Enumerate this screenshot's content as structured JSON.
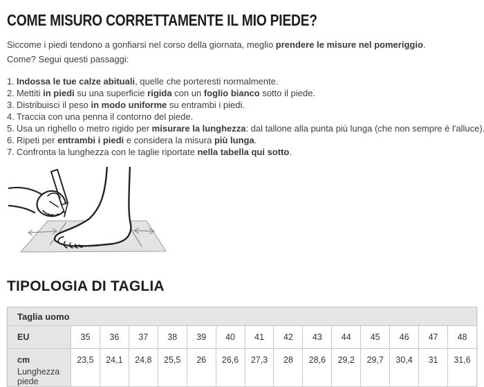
{
  "page": {
    "title": "COME MISURO CORRETTAMENTE IL MIO PIEDE?",
    "intro_segments": [
      {
        "t": "Siccome i piedi tendono a gonfiarsi nel corso della giornata, meglio ",
        "b": false
      },
      {
        "t": "prendere le misure nel pomeriggio",
        "b": true
      },
      {
        "t": ". Come? Segui questi passaggi:",
        "b": false
      }
    ],
    "steps": [
      {
        "num": "1.",
        "segments": [
          {
            "t": "Indossa le tue calze abituali",
            "b": true
          },
          {
            "t": ", quelle che porteresti normalmente.",
            "b": false
          }
        ]
      },
      {
        "num": "2.",
        "segments": [
          {
            "t": "Mettiti ",
            "b": false
          },
          {
            "t": "in piedi",
            "b": true
          },
          {
            "t": " su una superficie ",
            "b": false
          },
          {
            "t": "rigida",
            "b": true
          },
          {
            "t": " con un ",
            "b": false
          },
          {
            "t": "foglio bianco",
            "b": true
          },
          {
            "t": " sotto il piede.",
            "b": false
          }
        ]
      },
      {
        "num": "3.",
        "segments": [
          {
            "t": "Distribuisci il peso ",
            "b": false
          },
          {
            "t": "in modo uniforme",
            "b": true
          },
          {
            "t": " su entrambi i piedi.",
            "b": false
          }
        ]
      },
      {
        "num": "4.",
        "segments": [
          {
            "t": "Traccia con una penna il contorno del piede.",
            "b": false
          }
        ]
      },
      {
        "num": "5.",
        "segments": [
          {
            "t": "Usa un righello o metro rigido per ",
            "b": false
          },
          {
            "t": "misurare la lunghezza",
            "b": true
          },
          {
            "t": ": dal tallone alla punta più lunga (che non sempre è l'alluce).",
            "b": false
          }
        ]
      },
      {
        "num": "6.",
        "segments": [
          {
            "t": "Ripeti per ",
            "b": false
          },
          {
            "t": "entrambi i piedi",
            "b": true
          },
          {
            "t": " e considera la misura ",
            "b": false
          },
          {
            "t": "più lunga",
            "b": true
          },
          {
            "t": ".",
            "b": false
          }
        ]
      },
      {
        "num": "7.",
        "segments": [
          {
            "t": "Confronta la lunghezza con le taglie riportate ",
            "b": false
          },
          {
            "t": "nella tabella qui sotto",
            "b": true
          },
          {
            "t": ".",
            "b": false
          }
        ]
      }
    ],
    "section2_title": "TIPOLOGIA DI TAGLIA"
  },
  "illustration": {
    "description": "line drawing of a hand with a pen tracing a foot standing on a sheet of paper, with length-measurement arrows at toe and heel"
  },
  "size_table": {
    "header": "Taglia uomo",
    "row_eu_label": "EU",
    "row_cm_label": "cm",
    "row_cm_sublabel": "Lunghezza piede",
    "eu_sizes": [
      "35",
      "36",
      "37",
      "38",
      "39",
      "40",
      "41",
      "42",
      "43",
      "44",
      "45",
      "46",
      "47",
      "48"
    ],
    "cm_values": [
      "23,5",
      "24,1",
      "24,8",
      "25,5",
      "26",
      "26,6",
      "27,3",
      "28",
      "28,6",
      "29,2",
      "29,7",
      "30,4",
      "31",
      "31,6"
    ]
  },
  "colors": {
    "heading_text": "#1e1e1e",
    "body_text": "#3d3d3d",
    "table_gray_bg": "#e5e5e5",
    "table_border": "#c8c8c8",
    "paper_fill": "#e3e3e3",
    "drawing_stroke": "#222222"
  }
}
